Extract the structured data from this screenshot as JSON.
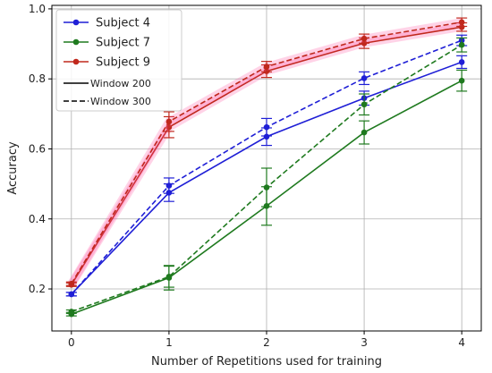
{
  "chart_data": {
    "type": "line",
    "title": "",
    "xlabel": "Number of Repetitions used for training",
    "ylabel": "Accuracy",
    "x": [
      0,
      1,
      2,
      3,
      4
    ],
    "xlim": [
      -0.2,
      4.2
    ],
    "ylim": [
      0.08,
      1.01
    ],
    "xticks": [
      "0",
      "1",
      "2",
      "3",
      "4"
    ],
    "yticks": [
      "0.2",
      "0.4",
      "0.6",
      "0.8",
      "1.0"
    ],
    "grid": true,
    "legend_position": "top-left",
    "legend": {
      "subjects": [
        {
          "name": "Subject 4",
          "color": "#1f1fd6"
        },
        {
          "name": "Subject 7",
          "color": "#1f7a1f"
        },
        {
          "name": "Subject 9",
          "color": "#c0281c"
        }
      ],
      "windows": [
        {
          "name": "Window 200",
          "dash": "solid"
        },
        {
          "name": "Window 300",
          "dash": "dashed"
        }
      ]
    },
    "series": [
      {
        "name": "Subject 4",
        "window": "Window 200",
        "color": "#1f1fd6",
        "dash": "solid",
        "values": [
          0.185,
          0.475,
          0.635,
          0.745,
          0.848
        ],
        "errors": [
          0.005,
          0.025,
          0.025,
          0.02,
          0.018
        ]
      },
      {
        "name": "Subject 4",
        "window": "Window 300",
        "color": "#1f1fd6",
        "dash": "dashed",
        "values": [
          0.185,
          0.495,
          0.662,
          0.802,
          0.91
        ],
        "errors": [
          0.005,
          0.022,
          0.025,
          0.018,
          0.015
        ]
      },
      {
        "name": "Subject 7",
        "window": "Window 200",
        "color": "#1f7a1f",
        "dash": "solid",
        "values": [
          0.128,
          0.232,
          0.437,
          0.647,
          0.795
        ],
        "errors": [
          0.005,
          0.035,
          0.055,
          0.033,
          0.03
        ]
      },
      {
        "name": "Subject 7",
        "window": "Window 300",
        "color": "#1f7a1f",
        "dash": "dashed",
        "values": [
          0.135,
          0.235,
          0.49,
          0.727,
          0.897
        ],
        "errors": [
          0.005,
          0.03,
          0.055,
          0.03,
          0.02
        ]
      },
      {
        "name": "Subject 9",
        "window": "Window 200",
        "color": "#c0281c",
        "dash": "solid",
        "values": [
          0.212,
          0.662,
          0.822,
          0.902,
          0.948
        ],
        "errors": [
          0.005,
          0.03,
          0.018,
          0.015,
          0.012
        ]
      },
      {
        "name": "Subject 9",
        "window": "Window 300",
        "color": "#c0281c",
        "dash": "dashed",
        "values": [
          0.215,
          0.678,
          0.835,
          0.915,
          0.962
        ],
        "errors": [
          0.005,
          0.028,
          0.015,
          0.013,
          0.012
        ]
      }
    ]
  }
}
